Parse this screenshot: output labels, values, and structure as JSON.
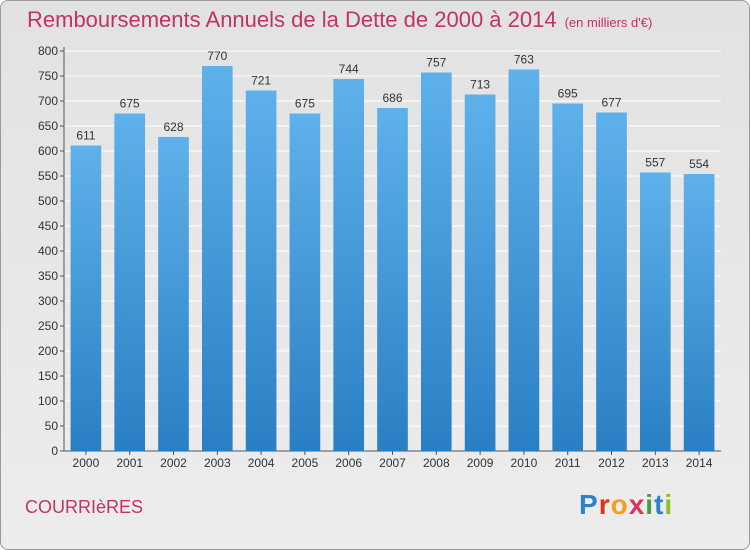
{
  "header": {
    "title": "Remboursements Annuels de la Dette de 2000 à 2014",
    "subtitle": "(en milliers d'€)"
  },
  "footer": {
    "commune": "COURRIèRES",
    "logo_letters": [
      "P",
      "r",
      "o",
      "x",
      "i",
      "t",
      "i"
    ],
    "logo_colors": [
      "#2c80d0",
      "#e03020",
      "#f0a020",
      "#e03060",
      "#40a040",
      "#2c80d0",
      "#90c020"
    ]
  },
  "colors": {
    "accent": "#c4325e",
    "bar_top": "#5eb1ea",
    "bar_bottom": "#2a7fc4",
    "grid": "#ffffff"
  },
  "chart_data": {
    "type": "bar",
    "title": "Remboursements Annuels de la Dette de 2000 à 2014",
    "subtitle": "(en milliers d'€)",
    "categories": [
      "2000",
      "2001",
      "2002",
      "2003",
      "2004",
      "2005",
      "2006",
      "2007",
      "2008",
      "2009",
      "2010",
      "2011",
      "2012",
      "2013",
      "2014"
    ],
    "values": [
      611,
      675,
      628,
      770,
      721,
      675,
      744,
      686,
      757,
      713,
      763,
      695,
      677,
      557,
      554
    ],
    "ylim": [
      0,
      800
    ],
    "yticks": [
      0,
      50,
      100,
      150,
      200,
      250,
      300,
      350,
      400,
      450,
      500,
      550,
      600,
      650,
      700,
      750,
      800
    ],
    "grid": true
  }
}
